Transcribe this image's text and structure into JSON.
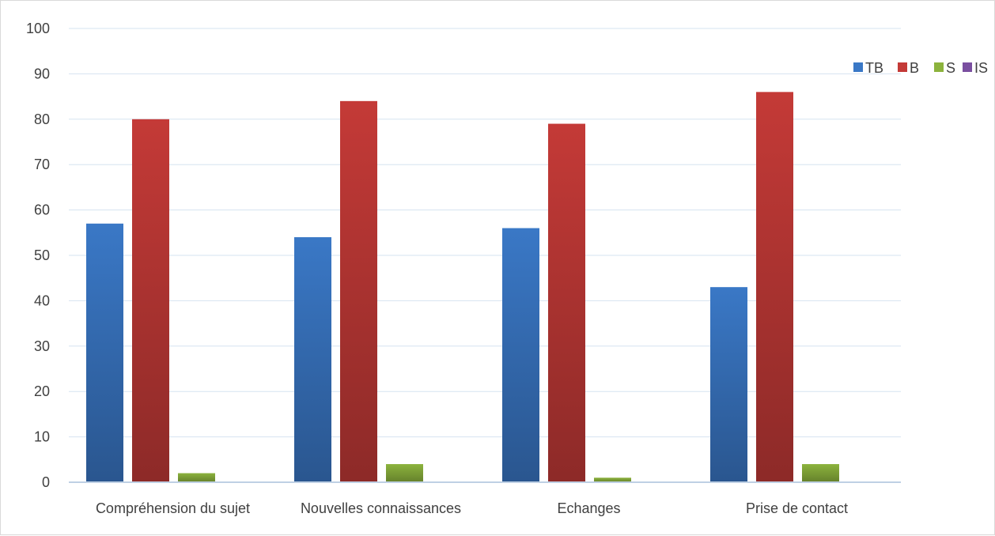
{
  "chart_data": {
    "type": "bar",
    "title": "",
    "xlabel": "",
    "ylabel": "",
    "ylim": [
      0,
      100
    ],
    "yticks": [
      0,
      10,
      20,
      30,
      40,
      50,
      60,
      70,
      80,
      90,
      100
    ],
    "grid": true,
    "legend_position": "top-right",
    "categories": [
      "Compréhension du sujet",
      "Nouvelles connaissances",
      "Echanges",
      "Prise de contact"
    ],
    "series": [
      {
        "name": "TB",
        "color": "#3a78c6",
        "values": [
          57,
          54,
          56,
          43
        ]
      },
      {
        "name": "B",
        "color": "#c43a37",
        "values": [
          80,
          84,
          79,
          86
        ]
      },
      {
        "name": "S",
        "color": "#8cb33d",
        "values": [
          2,
          4,
          1,
          4
        ]
      },
      {
        "name": "IS",
        "color": "#7a4fa0",
        "values": [
          0,
          0,
          0,
          0
        ]
      }
    ]
  }
}
